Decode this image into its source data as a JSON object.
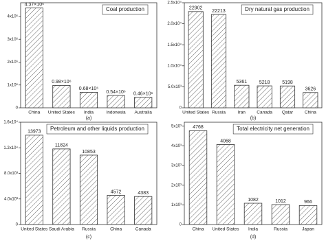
{
  "chart_data": [
    {
      "type": "bar",
      "title": "Coal production",
      "caption": "(a)",
      "color": "#444444",
      "categories": [
        "China",
        "United States",
        "India",
        "Indonesia",
        "Australia"
      ],
      "values": [
        4370000,
        980000,
        680000,
        540000,
        460000
      ],
      "value_labels": [
        "4.37×10⁶",
        "0.98×10⁶",
        "0.68×10⁶",
        "0.54×10⁶",
        "0.46×10⁶"
      ],
      "ylim": [
        0,
        4600000
      ],
      "yticks": [
        0,
        {
          "value": 1000000,
          "label": "1x10⁶"
        },
        {
          "value": 2000000,
          "label": "2x10⁶"
        },
        {
          "value": 3000000,
          "label": "3x10⁶"
        },
        {
          "value": 4000000,
          "label": "4x10⁶"
        }
      ]
    },
    {
      "type": "bar",
      "title": "Dry natural gas production",
      "caption": "(b)",
      "color": "#444444",
      "categories": [
        "United States",
        "Russia",
        "Iran",
        "Canada",
        "Qatar",
        "China"
      ],
      "values": [
        22902,
        22213,
        5361,
        5218,
        5198,
        3626
      ],
      "ylim": [
        0,
        25000
      ],
      "yticks": [
        0,
        {
          "value": 5000,
          "label": "5.0x10³"
        },
        {
          "value": 10000,
          "label": "1.0x10⁴"
        },
        {
          "value": 15000,
          "label": "1.5x10⁴"
        },
        {
          "value": 20000,
          "label": "2.0x10⁴"
        },
        {
          "value": 25000,
          "label": "2.5x10⁴"
        }
      ]
    },
    {
      "type": "bar",
      "title": "Petroleum and other liquids production",
      "caption": "(c)",
      "color": "#444444",
      "categories": [
        "United States",
        "Saudi Arabia",
        "Russia",
        "China",
        "Canada"
      ],
      "values": [
        13973,
        11824,
        10853,
        4572,
        4383
      ],
      "ylim": [
        0,
        16000
      ],
      "yticks": [
        0,
        {
          "value": 4000,
          "label": "4.0x10³"
        },
        {
          "value": 8000,
          "label": "8.0x10³"
        },
        {
          "value": 12000,
          "label": "1.2x10⁴"
        },
        {
          "value": 16000,
          "label": "1.6x10⁴"
        }
      ]
    },
    {
      "type": "bar",
      "title": "Total electricity net generation",
      "caption": "(d)",
      "color": "#444444",
      "categories": [
        "China",
        "United States",
        "India",
        "Russia",
        "Japan"
      ],
      "values": [
        4768,
        4068,
        1082,
        1012,
        966
      ],
      "ylim": [
        0,
        5200
      ],
      "yticks": [
        0,
        {
          "value": 1000,
          "label": "1x10³"
        },
        {
          "value": 2000,
          "label": "2x10³"
        },
        {
          "value": 3000,
          "label": "3x10³"
        },
        {
          "value": 4000,
          "label": "4x10³"
        },
        {
          "value": 5000,
          "label": "5x10³"
        }
      ]
    }
  ]
}
